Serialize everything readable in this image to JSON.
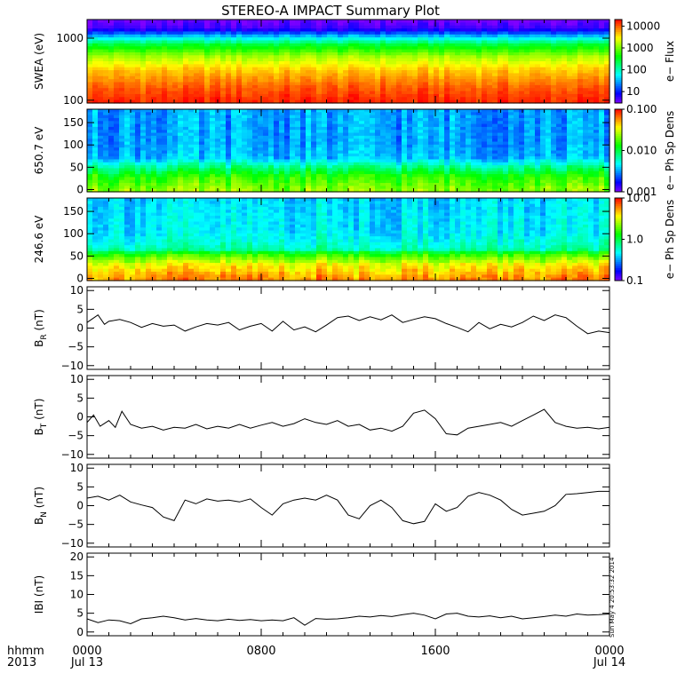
{
  "title": "STEREO-A IMPACT Summary Plot",
  "stamp": "Sun May  4 20:53:32 2014",
  "time_axis": {
    "row1_label": "hhmm",
    "row2_label": "2013",
    "ticks": [
      {
        "hour": 0,
        "label": "0000",
        "date": "Jul 13"
      },
      {
        "hour": 8,
        "label": "0800",
        "date": ""
      },
      {
        "hour": 16,
        "label": "1600",
        "date": ""
      },
      {
        "hour": 24,
        "label": "0000",
        "date": "Jul 14"
      }
    ]
  },
  "colors": {
    "spectrogram_scale": [
      "#7f00ff",
      "#0000ff",
      "#0080ff",
      "#00ffff",
      "#00ff80",
      "#00ff00",
      "#80ff00",
      "#ffff00",
      "#ff8000",
      "#ff0000"
    ]
  },
  "chart_data": [
    {
      "type": "heatmap",
      "name": "swea",
      "ylabel": "SWEA (eV)",
      "yscale": "log",
      "ylim": [
        90,
        2000
      ],
      "yticks": [
        {
          "v": 100,
          "label": "100"
        },
        {
          "v": 1000,
          "label": "1000"
        }
      ],
      "colorbar": {
        "label": "e− Flux",
        "scale": "log",
        "range": [
          3,
          20000
        ],
        "ticks": [
          {
            "v": 10,
            "label": "10"
          },
          {
            "v": 100,
            "label": "100"
          },
          {
            "v": 1000,
            "label": "1000"
          },
          {
            "v": 10000,
            "label": "10000"
          }
        ]
      },
      "profile_log": [
        [
          1.95,
          4.2
        ],
        [
          2.2,
          4.0
        ],
        [
          2.5,
          3.6
        ],
        [
          2.7,
          3.15
        ],
        [
          2.9,
          2.4
        ],
        [
          3.05,
          1.4
        ],
        [
          3.15,
          0.7
        ],
        [
          3.3,
          0.5
        ]
      ]
    },
    {
      "type": "heatmap",
      "name": "pad650",
      "ylabel": "650.7 eV",
      "ylim": [
        -5,
        180
      ],
      "yticks": [
        {
          "v": 0,
          "label": "0"
        },
        {
          "v": 50,
          "label": "50"
        },
        {
          "v": 100,
          "label": "100"
        },
        {
          "v": 150,
          "label": "150"
        }
      ],
      "colorbar": {
        "label": "e− Ph Sp Dens",
        "scale": "log",
        "range": [
          0.001,
          0.1
        ],
        "ticks": [
          {
            "v": 0.001,
            "label": "0.001"
          },
          {
            "v": 0.01,
            "label": "0.010"
          },
          {
            "v": 0.1,
            "label": "0.100"
          }
        ]
      },
      "profile_log": [
        [
          0,
          -1.65
        ],
        [
          30,
          -1.85
        ],
        [
          55,
          -2.2
        ],
        [
          70,
          -2.45
        ],
        [
          100,
          -2.5
        ],
        [
          180,
          -2.5
        ]
      ]
    },
    {
      "type": "heatmap",
      "name": "pad246",
      "ylabel": "246.6 eV",
      "ylim": [
        -5,
        180
      ],
      "yticks": [
        {
          "v": 0,
          "label": "0"
        },
        {
          "v": 50,
          "label": "50"
        },
        {
          "v": 100,
          "label": "100"
        },
        {
          "v": 150,
          "label": "150"
        }
      ],
      "colorbar": {
        "label": "e− Ph Sp Dens",
        "scale": "log",
        "range": [
          0.1,
          10
        ],
        "ticks": [
          {
            "v": 0.1,
            "label": "0.1"
          },
          {
            "v": 1,
            "label": "1.0"
          },
          {
            "v": 10,
            "label": "10.0"
          }
        ]
      },
      "profile_log": [
        [
          0,
          0.75
        ],
        [
          30,
          0.55
        ],
        [
          55,
          0.15
        ],
        [
          65,
          -0.2
        ],
        [
          100,
          -0.35
        ],
        [
          180,
          -0.4
        ]
      ]
    },
    {
      "type": "line",
      "name": "br",
      "ylabel": "B",
      "ylabel_sub": "R",
      "ylabel_unit": "(nT)",
      "ylim": [
        -11,
        11
      ],
      "yticks": [
        {
          "v": -10,
          "label": "−10"
        },
        {
          "v": -5,
          "label": "−5"
        },
        {
          "v": 0,
          "label": "0"
        },
        {
          "v": 5,
          "label": "5"
        },
        {
          "v": 10,
          "label": "10"
        }
      ],
      "x": [
        0,
        0.5,
        0.8,
        1,
        1.5,
        2,
        2.5,
        3,
        3.5,
        4,
        4.5,
        5,
        5.5,
        6,
        6.5,
        7,
        7.5,
        8,
        8.5,
        9,
        9.5,
        10,
        10.5,
        11,
        11.5,
        12,
        12.5,
        13,
        13.5,
        14,
        14.5,
        15,
        15.5,
        16,
        16.5,
        17,
        17.5,
        18,
        18.5,
        19,
        19.5,
        20,
        20.5,
        21,
        21.5,
        22,
        22.5,
        23,
        23.5,
        24
      ],
      "y": [
        1.5,
        3.5,
        1.0,
        1.8,
        2.3,
        1.5,
        0.2,
        1.2,
        0.5,
        0.8,
        -0.8,
        0.3,
        1.2,
        0.8,
        1.5,
        -0.5,
        0.5,
        1.2,
        -0.8,
        1.8,
        -0.5,
        0.3,
        -1.0,
        0.8,
        2.8,
        3.2,
        2.0,
        3.0,
        2.2,
        3.5,
        1.5,
        2.3,
        3.0,
        2.5,
        1.2,
        0.2,
        -1.0,
        1.5,
        -0.2,
        1.0,
        0.3,
        1.5,
        3.2,
        2.0,
        3.5,
        2.8,
        0.5,
        -1.5,
        -0.8,
        -1.2
      ]
    },
    {
      "type": "line",
      "name": "bt",
      "ylabel": "B",
      "ylabel_sub": "T",
      "ylabel_unit": "(nT)",
      "ylim": [
        -11,
        11
      ],
      "yticks": [
        {
          "v": -10,
          "label": "−10"
        },
        {
          "v": -5,
          "label": "−5"
        },
        {
          "v": 0,
          "label": "0"
        },
        {
          "v": 5,
          "label": "5"
        },
        {
          "v": 10,
          "label": "10"
        }
      ],
      "x": [
        0,
        0.3,
        0.6,
        1,
        1.3,
        1.6,
        2,
        2.5,
        3,
        3.5,
        4,
        4.5,
        5,
        5.5,
        6,
        6.5,
        7,
        7.5,
        8,
        8.5,
        9,
        9.5,
        10,
        10.5,
        11,
        11.5,
        12,
        12.5,
        13,
        13.5,
        14,
        14.5,
        15,
        15.5,
        16,
        16.5,
        17,
        17.5,
        18,
        18.5,
        19,
        19.5,
        20,
        20.5,
        21,
        21.5,
        22,
        22.5,
        23,
        23.5,
        24
      ],
      "y": [
        -1.5,
        0.5,
        -2.5,
        -1.0,
        -2.8,
        1.5,
        -2.0,
        -3.0,
        -2.5,
        -3.5,
        -2.8,
        -3.0,
        -2.0,
        -3.2,
        -2.5,
        -3.0,
        -2.0,
        -3.0,
        -2.2,
        -1.5,
        -2.5,
        -1.8,
        -0.5,
        -1.5,
        -2.0,
        -1.0,
        -2.5,
        -2.0,
        -3.5,
        -3.0,
        -3.8,
        -2.5,
        1.0,
        1.8,
        -0.5,
        -4.5,
        -4.8,
        -3.0,
        -2.5,
        -2.0,
        -1.5,
        -2.5,
        -1.0,
        0.5,
        2.0,
        -1.5,
        -2.5,
        -3.0,
        -2.8,
        -3.2,
        -2.8
      ]
    },
    {
      "type": "line",
      "name": "bn",
      "ylabel": "B",
      "ylabel_sub": "N",
      "ylabel_unit": "(nT)",
      "ylim": [
        -11,
        11
      ],
      "yticks": [
        {
          "v": -10,
          "label": "−10"
        },
        {
          "v": -5,
          "label": "−5"
        },
        {
          "v": 0,
          "label": "0"
        },
        {
          "v": 5,
          "label": "5"
        },
        {
          "v": 10,
          "label": "10"
        }
      ],
      "x": [
        0,
        0.5,
        1,
        1.5,
        2,
        2.5,
        3,
        3.5,
        4,
        4.5,
        5,
        5.5,
        6,
        6.5,
        7,
        7.5,
        8,
        8.5,
        9,
        9.5,
        10,
        10.5,
        11,
        11.5,
        12,
        12.5,
        13,
        13.5,
        14,
        14.5,
        15,
        15.5,
        16,
        16.5,
        17,
        17.5,
        18,
        18.5,
        19,
        19.5,
        20,
        20.5,
        21,
        21.5,
        22,
        22.5,
        23,
        23.5,
        24
      ],
      "y": [
        2.0,
        2.5,
        1.5,
        2.8,
        1.0,
        0.2,
        -0.5,
        -3.0,
        -4.0,
        1.5,
        0.5,
        1.8,
        1.2,
        1.5,
        1.0,
        1.8,
        -0.5,
        -2.5,
        0.5,
        1.5,
        2.0,
        1.5,
        2.8,
        1.5,
        -2.5,
        -3.5,
        0.0,
        1.5,
        -0.5,
        -4.0,
        -4.8,
        -4.2,
        0.5,
        -1.5,
        -0.5,
        2.5,
        3.5,
        2.8,
        1.5,
        -1.0,
        -2.5,
        -2.0,
        -1.5,
        0.0,
        3.0,
        3.2,
        3.5,
        3.8,
        3.8
      ]
    },
    {
      "type": "line",
      "name": "bmag",
      "ylabel": "IBI",
      "ylabel_unit": "(nT)",
      "ylim": [
        -1,
        21
      ],
      "yticks": [
        {
          "v": 0,
          "label": "0"
        },
        {
          "v": 5,
          "label": "5"
        },
        {
          "v": 10,
          "label": "10"
        },
        {
          "v": 15,
          "label": "15"
        },
        {
          "v": 20,
          "label": "20"
        }
      ],
      "x": [
        0,
        0.5,
        1,
        1.5,
        2,
        2.5,
        3,
        3.5,
        4,
        4.5,
        5,
        5.5,
        6,
        6.5,
        7,
        7.5,
        8,
        8.5,
        9,
        9.5,
        10,
        10.5,
        11,
        11.5,
        12,
        12.5,
        13,
        13.5,
        14,
        14.5,
        15,
        15.5,
        16,
        16.5,
        17,
        17.5,
        18,
        18.5,
        19,
        19.5,
        20,
        20.5,
        21,
        21.5,
        22,
        22.5,
        23,
        23.5,
        24
      ],
      "y": [
        3.5,
        2.5,
        3.2,
        3.0,
        2.2,
        3.5,
        3.8,
        4.2,
        3.8,
        3.2,
        3.6,
        3.2,
        3.0,
        3.4,
        3.1,
        3.3,
        3.0,
        3.2,
        3.0,
        3.8,
        1.8,
        3.6,
        3.4,
        3.5,
        3.8,
        4.2,
        4.0,
        4.4,
        4.1,
        4.6,
        5.0,
        4.5,
        3.5,
        4.8,
        5.0,
        4.2,
        4.0,
        4.3,
        3.8,
        4.2,
        3.5,
        3.8,
        4.1,
        4.5,
        4.2,
        4.8,
        4.5,
        4.6,
        4.8
      ]
    }
  ]
}
